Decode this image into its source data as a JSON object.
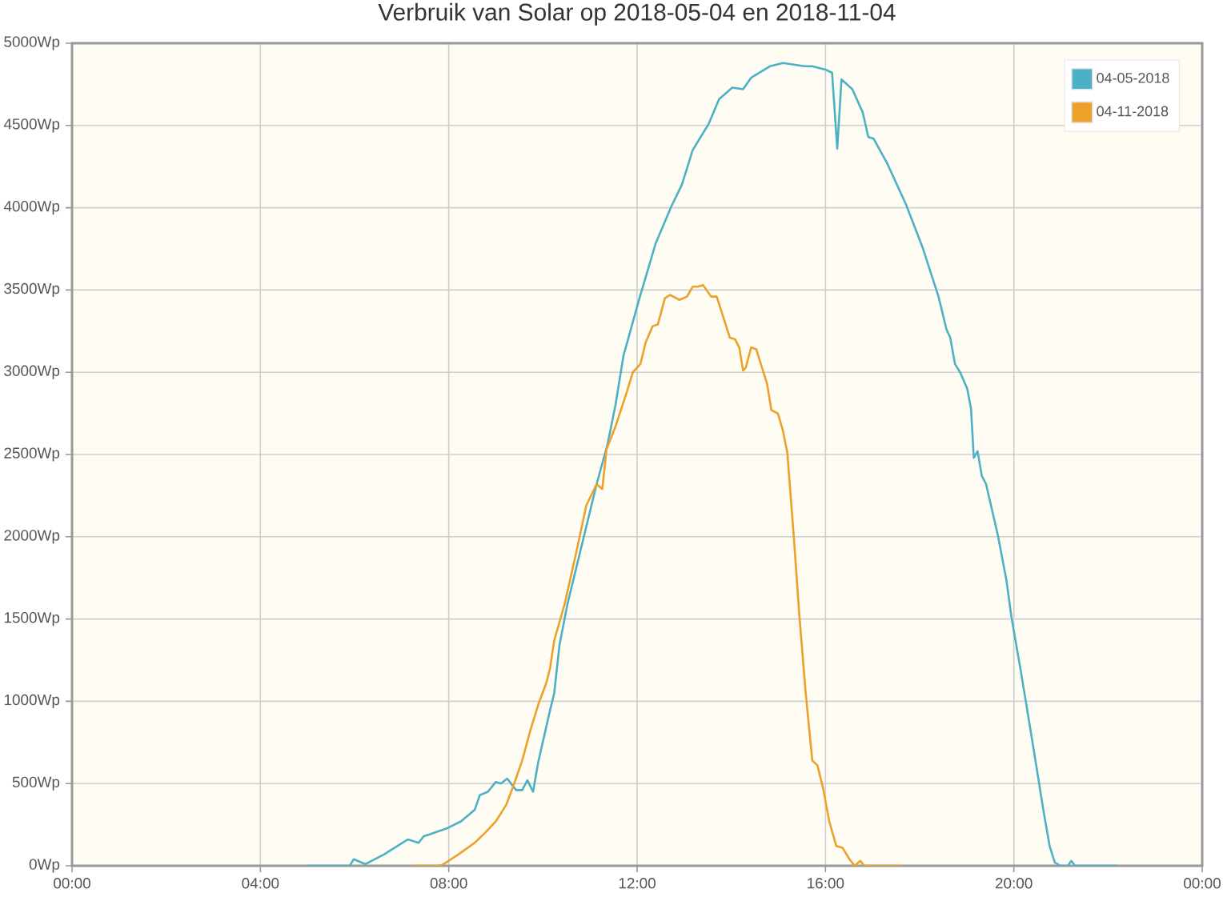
{
  "chart_data": {
    "type": "line",
    "title": "Verbruik van Solar op 2018-05-04 en 2018-11-04",
    "xlim": [
      0,
      24
    ],
    "xticks": [
      {
        "value": 0,
        "label": "00:00"
      },
      {
        "value": 4,
        "label": "04:00"
      },
      {
        "value": 8,
        "label": "08:00"
      },
      {
        "value": 12,
        "label": "12:00"
      },
      {
        "value": 16,
        "label": "16:00"
      },
      {
        "value": 20,
        "label": "20:00"
      },
      {
        "value": 24,
        "label": "00:00"
      }
    ],
    "ylim": [
      0,
      5000
    ],
    "yticks": [
      {
        "value": 0,
        "label": "0Wp"
      },
      {
        "value": 500,
        "label": "500Wp"
      },
      {
        "value": 1000,
        "label": "1000Wp"
      },
      {
        "value": 1500,
        "label": "1500Wp"
      },
      {
        "value": 2000,
        "label": "2000Wp"
      },
      {
        "value": 2500,
        "label": "2500Wp"
      },
      {
        "value": 3000,
        "label": "3000Wp"
      },
      {
        "value": 3500,
        "label": "3500Wp"
      },
      {
        "value": 4000,
        "label": "4000Wp"
      },
      {
        "value": 4500,
        "label": "4500Wp"
      },
      {
        "value": 5000,
        "label": "5000Wp"
      }
    ],
    "grid": true,
    "legend": "top right",
    "marker": "none",
    "line_style": "solid",
    "series": [
      {
        "name": "04-05-2018",
        "color": "#4cb1c5",
        "x": [
          5.0,
          5.9,
          5.98,
          6.23,
          6.63,
          7.13,
          7.36,
          7.47,
          7.58,
          7.98,
          8.26,
          8.55,
          8.66,
          8.83,
          9.0,
          9.11,
          9.24,
          9.43,
          9.56,
          9.67,
          9.79,
          9.9,
          10.13,
          10.24,
          10.35,
          10.52,
          11.14,
          11.37,
          11.54,
          11.71,
          12.05,
          12.39,
          12.73,
          12.95,
          13.18,
          13.52,
          13.74,
          14.02,
          14.25,
          14.42,
          14.82,
          15.1,
          15.33,
          15.55,
          15.72,
          16.0,
          16.14,
          16.25,
          16.34,
          16.57,
          16.79,
          16.91,
          17.02,
          17.31,
          17.71,
          18.06,
          18.4,
          18.57,
          18.65,
          18.75,
          18.86,
          19.01,
          19.09,
          19.15,
          19.23,
          19.32,
          19.41,
          19.66,
          19.84,
          19.95,
          20.15,
          20.3,
          20.47,
          20.62,
          20.76,
          20.87,
          20.99,
          21.15,
          21.22,
          21.3,
          22.2
        ],
        "values": [
          0,
          0,
          40,
          10,
          70,
          160,
          140,
          180,
          190,
          230,
          270,
          340,
          430,
          450,
          510,
          500,
          530,
          460,
          460,
          520,
          450,
          630,
          920,
          1050,
          1340,
          1590,
          2320,
          2560,
          2800,
          3100,
          3450,
          3780,
          4010,
          4140,
          4350,
          4510,
          4660,
          4730,
          4720,
          4790,
          4860,
          4880,
          4870,
          4860,
          4860,
          4840,
          4820,
          4360,
          4780,
          4720,
          4580,
          4430,
          4420,
          4270,
          4020,
          3760,
          3460,
          3260,
          3210,
          3050,
          3000,
          2900,
          2780,
          2480,
          2520,
          2370,
          2320,
          2010,
          1740,
          1510,
          1180,
          920,
          620,
          350,
          120,
          20,
          0,
          0,
          30,
          0,
          0
        ]
      },
      {
        "name": "04-11-2018",
        "color": "#eba12a",
        "x": [
          7.24,
          7.81,
          7.89,
          8.21,
          8.55,
          8.77,
          9.0,
          9.22,
          9.39,
          9.56,
          9.73,
          9.9,
          10.07,
          10.15,
          10.24,
          10.46,
          10.75,
          10.92,
          11.14,
          11.26,
          11.35,
          11.54,
          11.77,
          11.91,
          12.07,
          12.18,
          12.33,
          12.44,
          12.59,
          12.7,
          12.9,
          13.06,
          13.18,
          13.29,
          13.4,
          13.57,
          13.69,
          13.97,
          14.08,
          14.17,
          14.25,
          14.31,
          14.42,
          14.53,
          14.65,
          14.76,
          14.85,
          14.99,
          15.1,
          15.19,
          15.33,
          15.44,
          15.58,
          15.72,
          15.83,
          15.95,
          16.08,
          16.23,
          16.36,
          16.51,
          16.62,
          16.74,
          16.82,
          17.6
        ],
        "values": [
          0,
          0,
          10,
          70,
          140,
          200,
          270,
          370,
          500,
          640,
          820,
          980,
          1110,
          1200,
          1370,
          1590,
          1960,
          2190,
          2320,
          2290,
          2530,
          2670,
          2870,
          3000,
          3050,
          3180,
          3280,
          3290,
          3450,
          3470,
          3440,
          3460,
          3520,
          3520,
          3530,
          3460,
          3460,
          3210,
          3200,
          3150,
          3010,
          3030,
          3150,
          3140,
          3030,
          2930,
          2770,
          2750,
          2640,
          2510,
          1990,
          1540,
          1050,
          640,
          610,
          470,
          270,
          120,
          110,
          40,
          0,
          30,
          0,
          0
        ]
      }
    ]
  }
}
